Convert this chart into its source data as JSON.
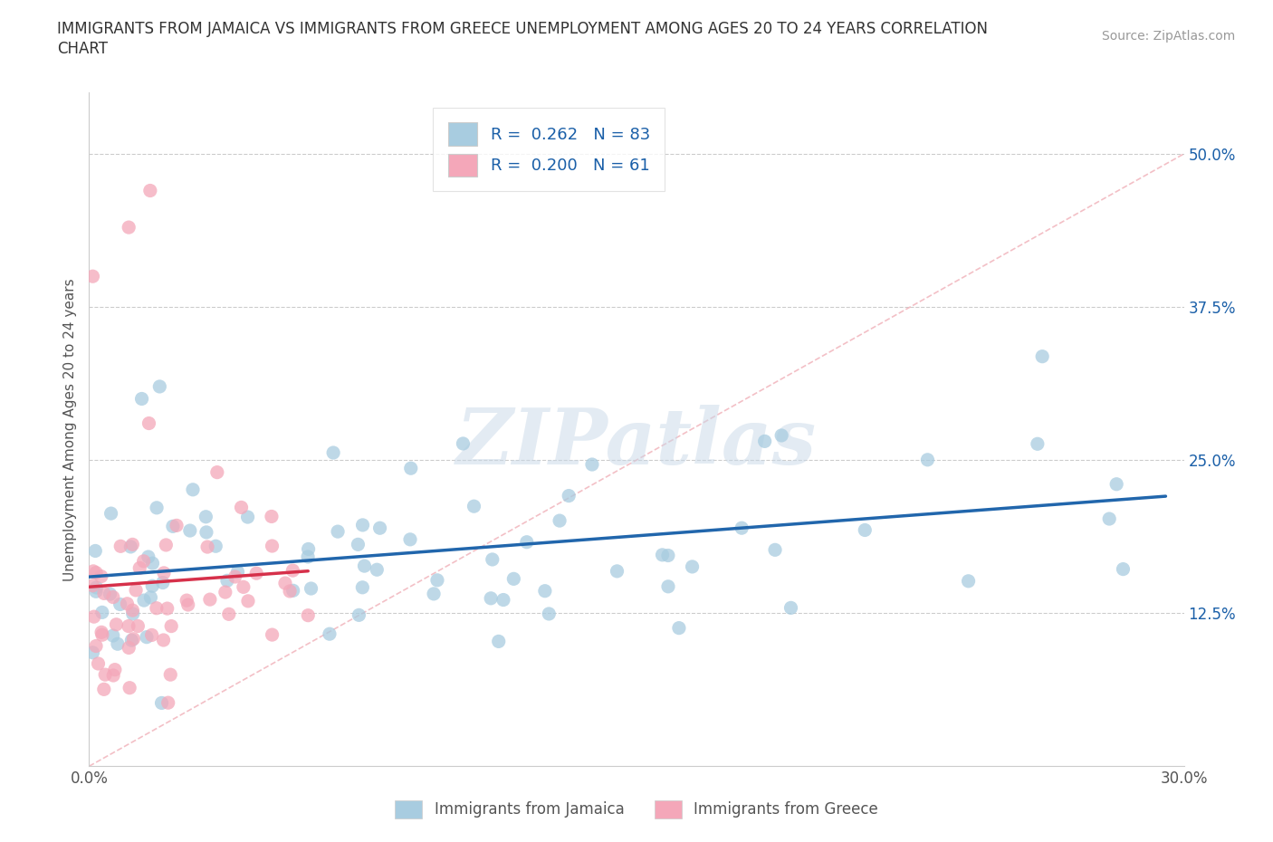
{
  "title_line1": "IMMIGRANTS FROM JAMAICA VS IMMIGRANTS FROM GREECE UNEMPLOYMENT AMONG AGES 20 TO 24 YEARS CORRELATION",
  "title_line2": "CHART",
  "source_text": "Source: ZipAtlas.com",
  "ylabel": "Unemployment Among Ages 20 to 24 years",
  "xlim": [
    0.0,
    0.3
  ],
  "ylim": [
    0.0,
    0.55
  ],
  "xtick_positions": [
    0.0,
    0.05,
    0.1,
    0.15,
    0.2,
    0.25,
    0.3
  ],
  "xticklabels": [
    "0.0%",
    "",
    "",
    "",
    "",
    "",
    "30.0%"
  ],
  "ytick_positions": [
    0.0,
    0.125,
    0.25,
    0.375,
    0.5
  ],
  "yticklabels": [
    "",
    "12.5%",
    "25.0%",
    "37.5%",
    "50.0%"
  ],
  "jamaica_color": "#a8cce0",
  "greece_color": "#f4a7b9",
  "trend_jamaica_color": "#2166ac",
  "trend_greece_color": "#d6304a",
  "diagonal_color": "#f0b0b8",
  "R_jamaica": 0.262,
  "N_jamaica": 83,
  "R_greece": 0.2,
  "N_greece": 61,
  "legend_jamaica": "Immigrants from Jamaica",
  "legend_greece": "Immigrants from Greece",
  "watermark_text": "ZIPatlas",
  "background_color": "#ffffff",
  "title_color": "#333333",
  "axis_color": "#888888",
  "tick_color": "#555555",
  "legend_text_color": "#1a5fa8",
  "source_color": "#999999",
  "grid_color": "#cccccc"
}
